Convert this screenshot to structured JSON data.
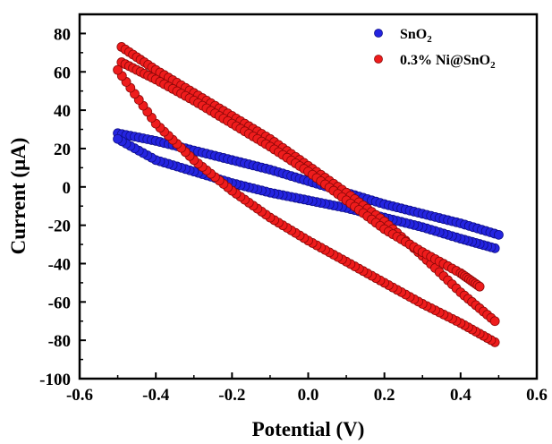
{
  "chart_data": {
    "type": "scatter",
    "xlabel": "Potential (V)",
    "ylabel": "Current (μA)",
    "xlim": [
      -0.6,
      0.6
    ],
    "ylim": [
      -100,
      90
    ],
    "xticks": [
      -0.6,
      -0.4,
      -0.2,
      0.0,
      0.2,
      0.4,
      0.6
    ],
    "xtick_labels": [
      "-0.6",
      "-0.4",
      "-0.2",
      "0.0",
      "0.2",
      "0.4",
      "0.6"
    ],
    "yticks": [
      -100,
      -80,
      -60,
      -40,
      -20,
      0,
      20,
      40,
      60,
      80
    ],
    "ytick_labels": [
      "-100",
      "-80",
      "-60",
      "-40",
      "-20",
      "0",
      "20",
      "40",
      "60",
      "80"
    ],
    "grid": false,
    "legend_position": "top-right",
    "series": [
      {
        "name": "SnO2",
        "color": "#2424e0",
        "marker": "circle",
        "branches": [
          {
            "x": [
              -0.5,
              -0.4,
              -0.3,
              -0.2,
              -0.1,
              0.0,
              0.1,
              0.2,
              0.3,
              0.4,
              0.5
            ],
            "y": [
              28,
              24,
              19,
              14,
              9,
              3,
              -3,
              -9,
              -14,
              -19,
              -25
            ]
          },
          {
            "x": [
              0.49,
              0.4,
              0.3,
              0.2,
              0.1,
              0.0,
              -0.1,
              -0.2,
              -0.3,
              -0.4,
              -0.5
            ],
            "y": [
              -32,
              -27,
              -21,
              -16,
              -11,
              -7,
              -3,
              2,
              8,
              14,
              25
            ]
          }
        ]
      },
      {
        "name": "0.3% Ni@SnO2",
        "color": "#ee1c1c",
        "marker": "circle",
        "branches": [
          {
            "x": [
              -0.49,
              -0.4,
              -0.3,
              -0.2,
              -0.1,
              0.0,
              0.1,
              0.2,
              0.3,
              0.4,
              0.49
            ],
            "y": [
              73,
              61,
              49,
              37,
              25,
              11,
              -3,
              -18,
              -36,
              -55,
              -70
            ]
          },
          {
            "x": [
              -0.49,
              -0.4,
              -0.3,
              -0.2,
              -0.1,
              0.0,
              0.1,
              0.2,
              0.3,
              0.4,
              0.45
            ],
            "y": [
              65,
              56,
              45,
              33,
              21,
              8,
              -7,
              -22,
              -34,
              -45,
              -52
            ]
          },
          {
            "x": [
              0.49,
              0.4,
              0.3,
              0.2,
              0.1,
              0.0,
              -0.1,
              -0.2,
              -0.3,
              -0.4,
              -0.5
            ],
            "y": [
              -81,
              -71,
              -61,
              -50,
              -39,
              -28,
              -16,
              -2,
              14,
              33,
              61
            ]
          }
        ]
      }
    ]
  }
}
